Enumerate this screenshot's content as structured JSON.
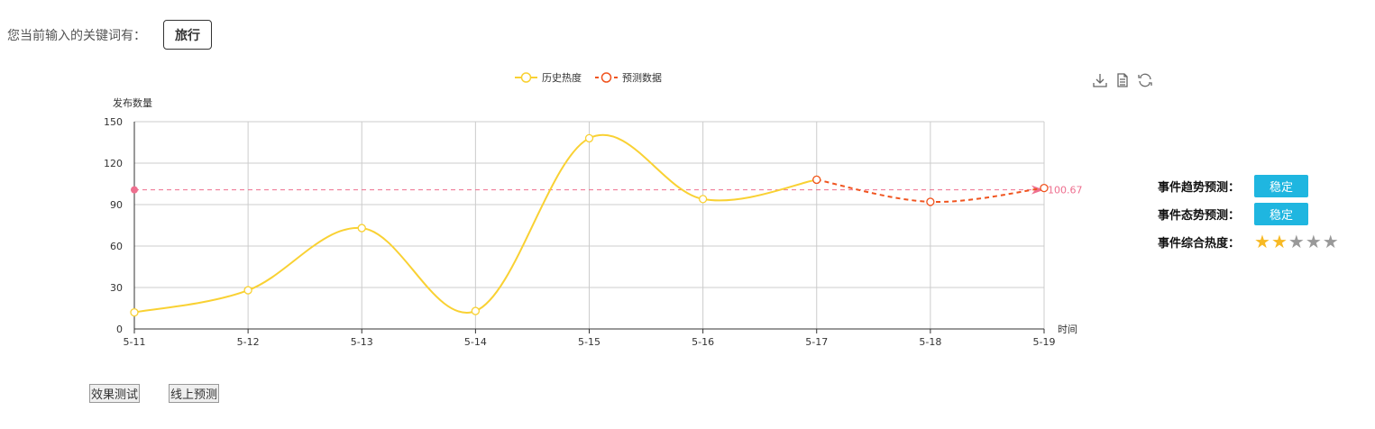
{
  "keyword": {
    "label": "您当前输入的关键词有：",
    "tag": "旅行"
  },
  "chart_data": {
    "type": "line",
    "ylabel": "发布数量",
    "xlabel": "时间",
    "categories": [
      "5-11",
      "5-12",
      "5-13",
      "5-14",
      "5-15",
      "5-16",
      "5-17",
      "5-18",
      "5-19"
    ],
    "yticks": [
      0,
      30,
      60,
      90,
      120,
      150
    ],
    "ylim": [
      0,
      150
    ],
    "grid": true,
    "legend_position": "top",
    "series": [
      {
        "name": "历史热度",
        "color": "#f9d133",
        "style": "solid",
        "x": [
          "5-11",
          "5-12",
          "5-13",
          "5-14",
          "5-15",
          "5-16",
          "5-17"
        ],
        "values": [
          12,
          28,
          73,
          13,
          138,
          94,
          108
        ]
      },
      {
        "name": "预测数据",
        "color": "#f0541f",
        "style": "dashed",
        "x": [
          "5-17",
          "5-18",
          "5-19"
        ],
        "values": [
          108,
          92,
          102
        ]
      }
    ],
    "mark_line": {
      "value": 100.67,
      "label": "100.67",
      "color": "#ee6f8f"
    }
  },
  "toolbox": {
    "icons": [
      "download-icon",
      "data-view-icon",
      "refresh-icon"
    ]
  },
  "side_panel": {
    "trend": {
      "label": "事件趋势预测：",
      "value": "稳定"
    },
    "state": {
      "label": "事件态势预测：",
      "value": "稳定"
    },
    "heat": {
      "label": "事件综合热度：",
      "stars": 2,
      "max": 5,
      "on_color": "#f7b924",
      "off_color": "#999999"
    }
  },
  "buttons": {
    "test": "效果测试",
    "online": "线上预测"
  }
}
